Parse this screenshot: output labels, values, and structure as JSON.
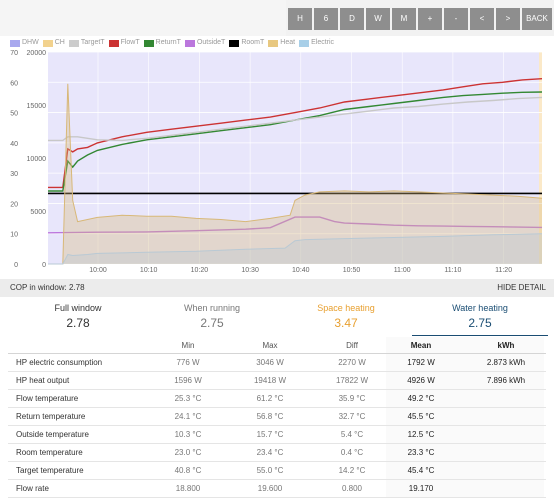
{
  "toolbar": {
    "buttons": [
      "H",
      "6",
      "D",
      "W",
      "M",
      "+",
      "-",
      "<",
      ">",
      "BACK"
    ]
  },
  "legend": [
    {
      "label": "DHW",
      "color": "#a8a8ee"
    },
    {
      "label": "CH",
      "color": "#f2d28e"
    },
    {
      "label": "TargetT",
      "color": "#cccccc"
    },
    {
      "label": "FlowT",
      "color": "#cc3333"
    },
    {
      "label": "ReturnT",
      "color": "#338833"
    },
    {
      "label": "OutsideT",
      "color": "#bb77dd"
    },
    {
      "label": "RoomT",
      "color": "#000000"
    },
    {
      "label": "Heat",
      "color": "#e8c880"
    },
    {
      "label": "Electric",
      "color": "#a8cfe8"
    }
  ],
  "chart_data": {
    "type": "line",
    "x_ticks": [
      "10:00",
      "10:10",
      "10:20",
      "10:30",
      "10:40",
      "10:50",
      "11:00",
      "11:10",
      "11:20"
    ],
    "y_left_ticks": [
      "0",
      "10",
      "20",
      "30",
      "40",
      "50",
      "60",
      "70"
    ],
    "y_right_ticks": [
      "0",
      "5000",
      "10000",
      "15000",
      "20000"
    ],
    "ylim_left": [
      0,
      70
    ],
    "ylim_right": [
      0,
      20000
    ],
    "series": [
      {
        "name": "FlowT",
        "color": "#cc3333",
        "axis": "left",
        "x": [
          0,
          3,
          4,
          5,
          6,
          8,
          10,
          15,
          20,
          25,
          30,
          35,
          40,
          45,
          50,
          55,
          60,
          65,
          70,
          75,
          80,
          84,
          88,
          92,
          96,
          100
        ],
        "y": [
          25.3,
          25.3,
          38,
          37,
          38,
          38.5,
          40,
          42,
          43.5,
          44.5,
          45.5,
          46.5,
          47.5,
          48.5,
          50,
          51.5,
          53.5,
          54.5,
          55.5,
          56.5,
          57.5,
          58.5,
          59.5,
          60,
          60.8,
          61.2
        ]
      },
      {
        "name": "ReturnT",
        "color": "#338833",
        "axis": "left",
        "x": [
          0,
          3,
          4,
          5,
          6,
          8,
          10,
          15,
          20,
          25,
          30,
          35,
          40,
          45,
          50,
          55,
          60,
          65,
          70,
          75,
          80,
          84,
          88,
          92,
          96,
          100
        ],
        "y": [
          24.1,
          24.1,
          34,
          32,
          34,
          36,
          37.5,
          39.5,
          41,
          42,
          43,
          44,
          45,
          46,
          47.5,
          49,
          51,
          52,
          53,
          54,
          55,
          55.6,
          56,
          56.4,
          56.7,
          56.8
        ]
      },
      {
        "name": "TargetT",
        "color": "#c8c8c8",
        "axis": "left",
        "x": [
          0,
          3,
          4,
          6,
          8,
          10,
          15,
          20,
          25,
          30,
          35,
          40,
          45,
          50,
          55,
          60,
          65,
          70,
          75,
          80,
          85,
          90,
          95,
          100
        ],
        "y": [
          40.8,
          40.8,
          42,
          42,
          41.5,
          41,
          40.8,
          41.5,
          42.5,
          43.5,
          44.5,
          45.5,
          46.5,
          47.5,
          48.5,
          49.5,
          50.5,
          51.5,
          52,
          52.8,
          53.5,
          54,
          54.6,
          55
        ]
      },
      {
        "name": "RoomT",
        "color": "#000000",
        "axis": "left",
        "x": [
          0,
          100
        ],
        "y": [
          23.3,
          23.3
        ]
      },
      {
        "name": "OutsideT",
        "color": "#bb77dd",
        "axis": "left",
        "x": [
          0,
          10,
          20,
          30,
          40,
          45,
          50,
          55,
          58,
          60,
          65,
          70,
          75,
          80,
          85,
          90,
          95,
          100
        ],
        "y": [
          10.3,
          10.5,
          10.6,
          11,
          11.5,
          12,
          15.5,
          15.5,
          14,
          13.5,
          13.2,
          12.8,
          12.6,
          12.5,
          12.4,
          12.3,
          12.2,
          12.1
        ]
      },
      {
        "name": "Heat",
        "color": "#d8b878",
        "axis": "right",
        "fill": true,
        "x": [
          0,
          3,
          4,
          5,
          6,
          8,
          10,
          15,
          20,
          25,
          30,
          35,
          40,
          45,
          49,
          50,
          52,
          55,
          60,
          65,
          70,
          75,
          80,
          85,
          90,
          95,
          100
        ],
        "y": [
          0,
          0,
          17000,
          6000,
          4000,
          4200,
          4400,
          4600,
          4500,
          4500,
          4300,
          4200,
          4000,
          4300,
          4600,
          6000,
          6500,
          6800,
          6900,
          6800,
          6900,
          6800,
          6700,
          6600,
          6500,
          6400,
          6200
        ]
      },
      {
        "name": "Electric",
        "color": "#b9c9d4",
        "axis": "right",
        "fill": true,
        "x": [
          0,
          3,
          4,
          5,
          8,
          10,
          20,
          30,
          40,
          48,
          50,
          52,
          60,
          70,
          80,
          90,
          100
        ],
        "y": [
          0,
          0,
          900,
          800,
          900,
          1000,
          1100,
          1200,
          1400,
          1500,
          2200,
          2300,
          2400,
          2500,
          2600,
          2750,
          2850
        ]
      }
    ],
    "legend_position": "top-left",
    "grid": true,
    "background": "#e8e6fb"
  },
  "cop_bar": {
    "label": "COP in window:",
    "value": "2.78",
    "hide_label": "HIDE DETAIL"
  },
  "cards": [
    {
      "title": "Full window",
      "value": "2.78",
      "color": "#333333"
    },
    {
      "title": "When running",
      "value": "2.75",
      "color": "#777777"
    },
    {
      "title": "Space heating",
      "value": "3.47",
      "color": "#e8a030"
    },
    {
      "title": "Water heating",
      "value": "2.75",
      "color": "#1a4d73"
    }
  ],
  "table": {
    "headers": {
      "min": "Min",
      "max": "Max",
      "diff": "Diff",
      "mean": "Mean",
      "kwh": "kWh"
    },
    "rows": [
      {
        "name": "HP electric consumption",
        "min": "776 W",
        "max": "3046 W",
        "diff": "2270 W",
        "mean": "1792 W",
        "kwh": "2.873 kWh"
      },
      {
        "name": "HP heat output",
        "min": "1596 W",
        "max": "19418 W",
        "diff": "17822 W",
        "mean": "4926 W",
        "kwh": "7.896 kWh"
      },
      {
        "name": "Flow temperature",
        "min": "25.3 °C",
        "max": "61.2 °C",
        "diff": "35.9 °C",
        "mean": "49.2 °C",
        "kwh": ""
      },
      {
        "name": "Return temperature",
        "min": "24.1 °C",
        "max": "56.8 °C",
        "diff": "32.7 °C",
        "mean": "45.5 °C",
        "kwh": ""
      },
      {
        "name": "Outside temperature",
        "min": "10.3 °C",
        "max": "15.7 °C",
        "diff": "5.4 °C",
        "mean": "12.5 °C",
        "kwh": ""
      },
      {
        "name": "Room temperature",
        "min": "23.0 °C",
        "max": "23.4 °C",
        "diff": "0.4 °C",
        "mean": "23.3 °C",
        "kwh": ""
      },
      {
        "name": "Target temperature",
        "min": "40.8 °C",
        "max": "55.0 °C",
        "diff": "14.2 °C",
        "mean": "45.4 °C",
        "kwh": ""
      },
      {
        "name": "Flow rate",
        "min": "18.800",
        "max": "19.600",
        "diff": "0.800",
        "mean": "19.170",
        "kwh": ""
      }
    ]
  }
}
